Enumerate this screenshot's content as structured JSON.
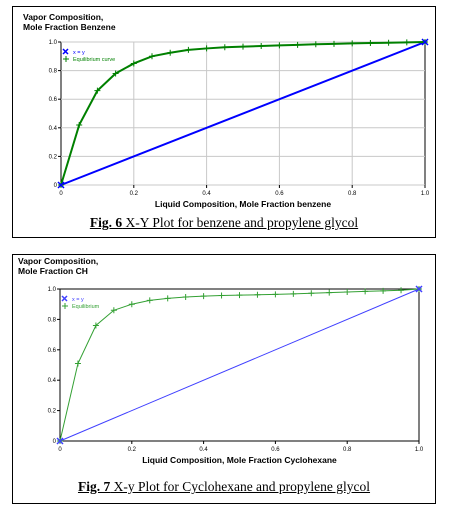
{
  "figures": [
    {
      "ytitle_line1": "Vapor Composition,",
      "ytitle_line2": "Mole Fraction Benzene",
      "caption_num": "Fig. 6",
      "caption_rest": " X-Y Plot for benzene and propylene glycol"
    },
    {
      "ytitle_line1": "Vapor Composition,",
      "ytitle_line2": "Mole Fraction CH",
      "caption_num": "Fig. 7",
      "caption_rest": " X-y Plot for Cyclohexane and propylene glycol"
    }
  ],
  "chart_data": [
    {
      "type": "line",
      "xlabel": "Liquid Composition, Mole Fraction benzene",
      "ylabel": "Vapor Composition, Mole Fraction Benzene",
      "xlim": [
        0,
        1
      ],
      "ylim": [
        0,
        1
      ],
      "xticks": [
        "0",
        "0.2",
        "0.4",
        "0.6",
        "0.8",
        "1.0"
      ],
      "yticks": [
        "0",
        "0.2",
        "0.4",
        "0.6",
        "0.8",
        "1.0"
      ],
      "grid": true,
      "legend_position": "top-left",
      "series": [
        {
          "name": "x = y",
          "color": "#0000ff",
          "x": [
            0,
            1
          ],
          "y": [
            0,
            1
          ]
        },
        {
          "name": "Equilibrium curve",
          "color": "#008000",
          "x": [
            0,
            0.05,
            0.1,
            0.15,
            0.2,
            0.25,
            0.3,
            0.35,
            0.4,
            0.45,
            0.5,
            0.55,
            0.6,
            0.65,
            0.7,
            0.75,
            0.8,
            0.85,
            0.9,
            0.95,
            1.0
          ],
          "y": [
            0,
            0.42,
            0.66,
            0.78,
            0.85,
            0.9,
            0.925,
            0.945,
            0.955,
            0.963,
            0.968,
            0.972,
            0.976,
            0.98,
            0.984,
            0.987,
            0.99,
            0.993,
            0.995,
            0.997,
            1.0
          ]
        }
      ]
    },
    {
      "type": "line",
      "xlabel": "Liquid Composition, Mole Fraction Cyclohexane",
      "ylabel": "Vapor Composition, Mole Fraction CH",
      "xlim": [
        0,
        1
      ],
      "ylim": [
        0,
        1
      ],
      "xticks": [
        "0",
        "0.2",
        "0.4",
        "0.6",
        "0.8",
        "1.0"
      ],
      "yticks": [
        "0",
        "0.2",
        "0.4",
        "0.6",
        "0.8",
        "1.0"
      ],
      "grid": false,
      "legend_position": "top-left",
      "series": [
        {
          "name": "x = y",
          "color": "#4040ff",
          "x": [
            0,
            1
          ],
          "y": [
            0,
            1
          ]
        },
        {
          "name": "Equilibrium",
          "color": "#33a033",
          "x": [
            0,
            0.05,
            0.1,
            0.15,
            0.2,
            0.25,
            0.3,
            0.35,
            0.4,
            0.45,
            0.5,
            0.55,
            0.6,
            0.65,
            0.7,
            0.75,
            0.8,
            0.85,
            0.9,
            0.95,
            1.0
          ],
          "y": [
            0,
            0.51,
            0.76,
            0.86,
            0.9,
            0.925,
            0.938,
            0.947,
            0.953,
            0.957,
            0.96,
            0.962,
            0.965,
            0.968,
            0.972,
            0.976,
            0.98,
            0.984,
            0.988,
            0.992,
            1.0
          ]
        }
      ]
    }
  ]
}
